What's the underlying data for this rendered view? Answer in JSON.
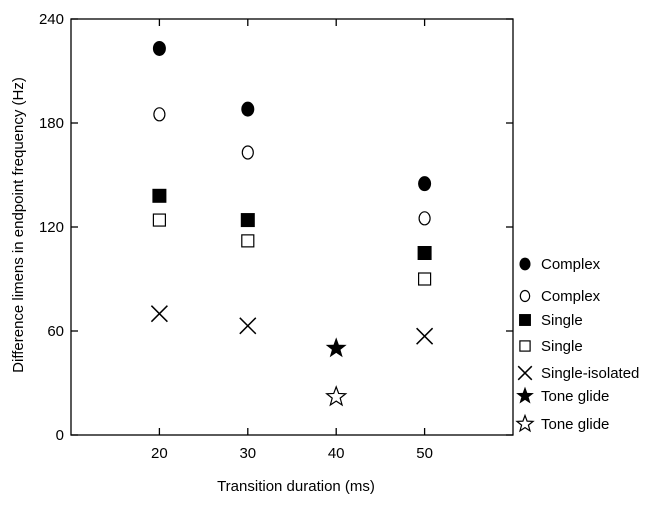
{
  "chart_data": {
    "type": "scatter",
    "title": "",
    "xlabel": "Transition duration (ms)",
    "ylabel": "Difference limens in endpoint frequency (Hz)",
    "xlim": [
      10,
      60
    ],
    "ylim": [
      0,
      240
    ],
    "x_ticks": [
      20,
      30,
      40,
      50
    ],
    "y_ticks": [
      0,
      60,
      120,
      180,
      240
    ],
    "grid": false,
    "legend_position": "right",
    "series": [
      {
        "name": "Complex",
        "marker": "filled-circle",
        "x": [
          20,
          30,
          50
        ],
        "y": [
          223,
          188,
          145
        ]
      },
      {
        "name": "Complex",
        "marker": "open-circle",
        "x": [
          20,
          30,
          50
        ],
        "y": [
          185,
          163,
          125
        ]
      },
      {
        "name": "Single",
        "marker": "filled-square",
        "x": [
          20,
          30,
          50
        ],
        "y": [
          138,
          124,
          105
        ]
      },
      {
        "name": "Single",
        "marker": "open-square",
        "x": [
          20,
          30,
          50
        ],
        "y": [
          124,
          112,
          90
        ]
      },
      {
        "name": "Single-isolated",
        "marker": "x-cross",
        "x": [
          20,
          30,
          50
        ],
        "y": [
          70,
          63,
          57
        ]
      },
      {
        "name": "Tone glide",
        "marker": "filled-star",
        "x": [
          40
        ],
        "y": [
          50
        ]
      },
      {
        "name": "Tone glide",
        "marker": "open-star",
        "x": [
          40
        ],
        "y": [
          22
        ]
      }
    ]
  }
}
